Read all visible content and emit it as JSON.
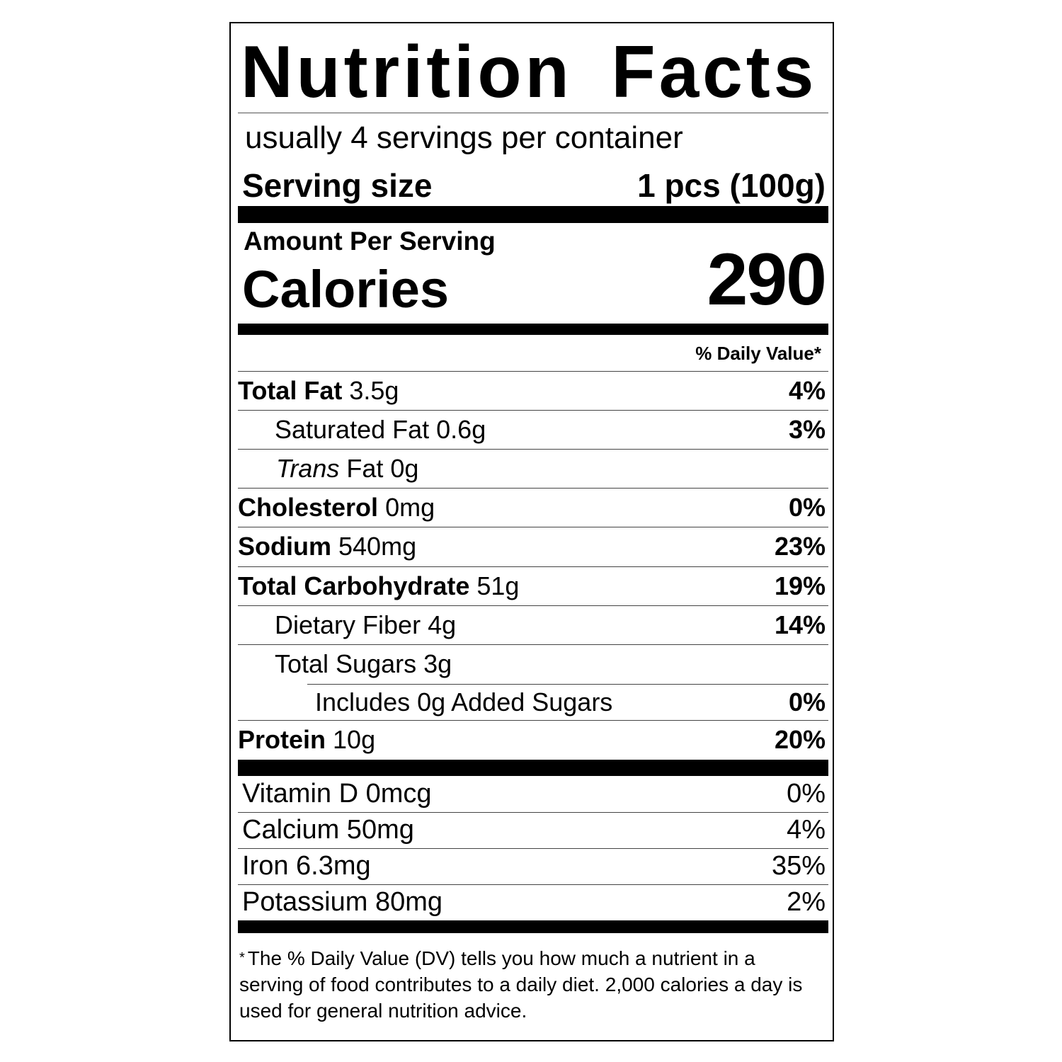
{
  "title": "Nutrition Facts",
  "servings_per_container": "usually 4 servings per container",
  "serving_size_label": "Serving size",
  "serving_size_value": "1 pcs (100g)",
  "amount_per_serving": "Amount Per Serving",
  "calories_label": "Calories",
  "calories_value": "290",
  "daily_value_header": "% Daily Value*",
  "nutrients": [
    {
      "name": "Total Fat",
      "amount": "3.5g",
      "dv": "4%"
    },
    {
      "name": "Saturated Fat",
      "amount": "0.6g",
      "dv": "3%"
    },
    {
      "name": "Trans",
      "name_suffix": "Fat",
      "amount": "0g",
      "dv": ""
    },
    {
      "name": "Cholesterol",
      "amount": "0mg",
      "dv": "0%"
    },
    {
      "name": "Sodium",
      "amount": "540mg",
      "dv": "23%"
    },
    {
      "name": "Total Carbohydrate",
      "amount": "51g",
      "dv": "19%"
    },
    {
      "name": "Dietary Fiber",
      "amount": "4g",
      "dv": "14%"
    },
    {
      "name": "Total Sugars",
      "amount": "3g",
      "dv": ""
    },
    {
      "name": "Includes 0g Added Sugars",
      "amount": "",
      "dv": "0%"
    },
    {
      "name": "Protein",
      "amount": "10g",
      "dv": "20%"
    }
  ],
  "vitamins": [
    {
      "label": "Vitamin D 0mcg",
      "dv": "0%"
    },
    {
      "label": "Calcium 50mg",
      "dv": "4%"
    },
    {
      "label": "Iron 6.3mg",
      "dv": "35%"
    },
    {
      "label": "Potassium 80mg",
      "dv": "2%"
    }
  ],
  "footnote_star": "*",
  "footnote": "The % Daily Value (DV) tells you how much a nutrient in a serving of food contributes to a daily diet. 2,000 calories a day is used for general nutrition advice."
}
